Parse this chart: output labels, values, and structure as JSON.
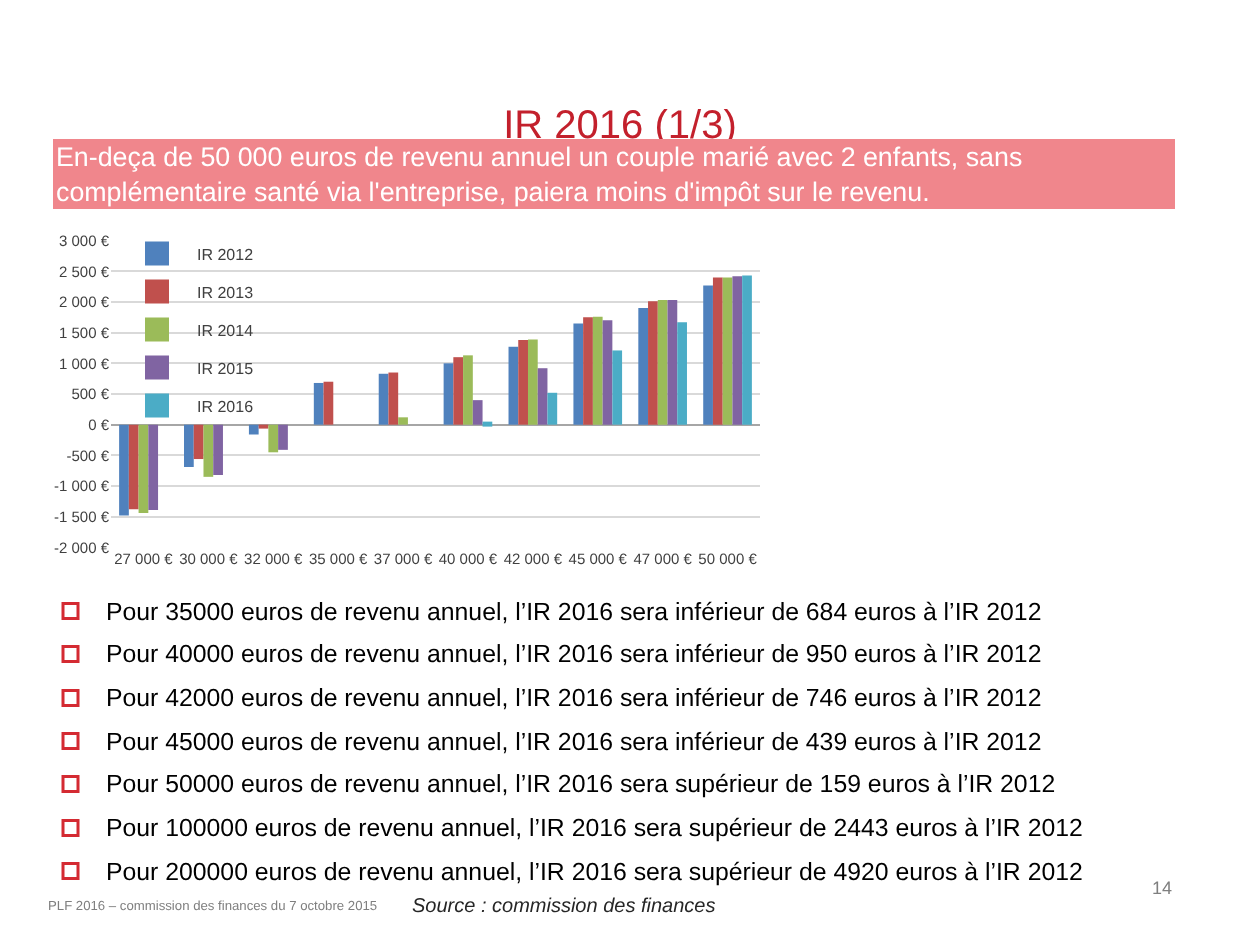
{
  "chart_data": {
    "type": "bar",
    "title": "IR 2016 (1/3)",
    "subtitle": "En-deça de 50 000 euros de revenu annuel un couple marié avec 2 enfants, sans complémentaire santé via l'entreprise, paiera moins d'impôt sur le revenu.",
    "categories": [
      "27 000 €",
      "30 000 €",
      "32 000 €",
      "35 000 €",
      "37 000 €",
      "40 000 €",
      "42 000 €",
      "45 000 €",
      "47 000 €",
      "50 000 €"
    ],
    "series": [
      {
        "name": "IR 2012",
        "color": "#4f81bd",
        "values": [
          -1480,
          -690,
          -160,
          680,
          830,
          1000,
          1270,
          1650,
          1900,
          2270
        ]
      },
      {
        "name": "IR 2013",
        "color": "#c0504d",
        "values": [
          -1380,
          -560,
          -40,
          700,
          850,
          1100,
          1380,
          1750,
          2010,
          2400
        ]
      },
      {
        "name": "IR 2014",
        "color": "#9bbb59",
        "values": [
          -1440,
          -850,
          -450,
          null,
          120,
          1130,
          1390,
          1760,
          2030,
          2400
        ]
      },
      {
        "name": "IR 2015",
        "color": "#8064a2",
        "values": [
          -1390,
          -820,
          -410,
          null,
          null,
          400,
          920,
          1700,
          2030,
          2420
        ]
      },
      {
        "name": "IR 2016",
        "color": "#4bacc6",
        "values": [
          null,
          null,
          null,
          null,
          null,
          50,
          520,
          1210,
          1670,
          2430
        ]
      }
    ],
    "ylim": [
      -2000,
      3000
    ],
    "yticks": [
      {
        "value": -2000,
        "label": "-2 000 €"
      },
      {
        "value": -1500,
        "label": "-1 500 €"
      },
      {
        "value": -1000,
        "label": "-1 000 €"
      },
      {
        "value": -500,
        "label": "-500 €"
      },
      {
        "value": 0,
        "label": "0 €"
      },
      {
        "value": 500,
        "label": "500 €"
      },
      {
        "value": 1000,
        "label": "1 000 €"
      },
      {
        "value": 1500,
        "label": "1 500 €"
      },
      {
        "value": 2000,
        "label": "2 000 €"
      },
      {
        "value": 2500,
        "label": "2 500 €"
      },
      {
        "value": 3000,
        "label": "3 000 €"
      }
    ],
    "grid": "y",
    "legend": "top left",
    "annotations": [
      "Pour 35000 euros de revenu annuel, l’IR 2016 sera inférieur de 684 euros à l’IR 2012",
      "Pour 40000 euros de revenu annuel, l’IR 2016 sera inférieur de 950 euros à l’IR 2012",
      "Pour 42000 euros de revenu annuel, l’IR 2016 sera inférieur de 746 euros à l’IR 2012",
      "Pour 45000 euros de revenu annuel, l’IR 2016 sera inférieur de 439 euros à l’IR 2012",
      "Pour 50000 euros de revenu annuel, l’IR 2016 sera supérieur de 159 euros à l’IR 2012",
      "Pour 100000 euros de revenu annuel, l’IR 2016 sera supérieur de 2443 euros à l’IR 2012",
      "Pour 200000 euros de revenu annuel, l’IR 2016 sera supérieur de 4920 euros à l’IR 2012",
      "PLF 2016 – commission des finances du 7 octobre 2015",
      "Source : commission des finances",
      "14"
    ]
  }
}
